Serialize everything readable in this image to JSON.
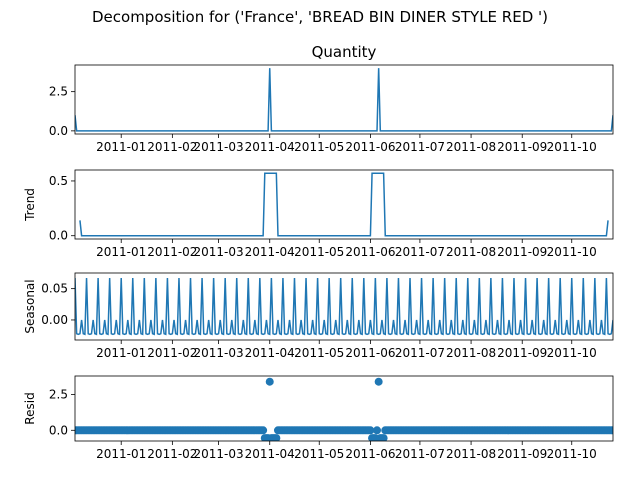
{
  "figure": {
    "suptitle": "Decomposition for ('France', 'BREAD BIN DINER STYLE RED ')"
  },
  "chart_data": [
    {
      "type": "line",
      "title": "Quantity",
      "ylabel": "",
      "x_ticks": [
        "2011-01",
        "2011-02",
        "2011-03",
        "2011-04",
        "2011-05",
        "2011-06",
        "2011-07",
        "2011-08",
        "2011-09",
        "2011-10"
      ],
      "y_ticks": [
        "0.0",
        "2.5"
      ],
      "ylim": [
        -0.2,
        4.2
      ],
      "x_range": [
        "2010-12-04",
        "2011-10-26"
      ],
      "baseline": 0,
      "spikes": [
        {
          "date": "2010-12-04",
          "value": 1
        },
        {
          "date": "2011-04-01",
          "value": 4
        },
        {
          "date": "2011-06-06",
          "value": 4
        },
        {
          "date": "2011-10-26",
          "value": 1
        }
      ],
      "color": "#1f77b4",
      "grid": false
    },
    {
      "type": "line",
      "title": "",
      "ylabel": "Trend",
      "x_ticks": [
        "2011-01",
        "2011-02",
        "2011-03",
        "2011-04",
        "2011-05",
        "2011-06",
        "2011-07",
        "2011-08",
        "2011-09",
        "2011-10"
      ],
      "y_ticks": [
        "0.0",
        "0.5"
      ],
      "ylim": [
        -0.03,
        0.6
      ],
      "x_range": [
        "2010-12-04",
        "2011-10-26"
      ],
      "points": [
        {
          "date": "2010-12-07",
          "value": 0.14
        },
        {
          "date": "2010-12-08",
          "value": 0
        },
        {
          "date": "2011-03-28",
          "value": 0
        },
        {
          "date": "2011-03-29",
          "value": 0.57
        },
        {
          "date": "2011-04-05",
          "value": 0.57
        },
        {
          "date": "2011-04-06",
          "value": 0
        },
        {
          "date": "2011-06-01",
          "value": 0
        },
        {
          "date": "2011-06-02",
          "value": 0.57
        },
        {
          "date": "2011-06-09",
          "value": 0.57
        },
        {
          "date": "2011-06-10",
          "value": 0
        },
        {
          "date": "2011-10-22",
          "value": 0
        },
        {
          "date": "2011-10-23",
          "value": 0.14
        }
      ],
      "color": "#1f77b4",
      "grid": false
    },
    {
      "type": "line",
      "title": "",
      "ylabel": "Seasonal",
      "x_ticks": [
        "2011-01",
        "2011-02",
        "2011-03",
        "2011-04",
        "2011-05",
        "2011-06",
        "2011-07",
        "2011-08",
        "2011-09",
        "2011-10"
      ],
      "y_ticks": [
        "0.00",
        "0.05"
      ],
      "ylim": [
        -0.032,
        0.075
      ],
      "x_range": [
        "2010-12-04",
        "2011-10-26"
      ],
      "weekly_pattern": [
        0.067,
        -0.022,
        -0.023,
        -0.022,
        -0.0,
        -0.022,
        -0.023
      ],
      "color": "#1f77b4",
      "grid": false
    },
    {
      "type": "scatter",
      "title": "",
      "ylabel": "Resid",
      "x_ticks": [
        "2011-01",
        "2011-02",
        "2011-03",
        "2011-04",
        "2011-05",
        "2011-06",
        "2011-07",
        "2011-08",
        "2011-09",
        "2011-10"
      ],
      "y_ticks": [
        "0.0",
        "2.5"
      ],
      "ylim": [
        -0.75,
        3.8
      ],
      "x_range": [
        "2010-12-04",
        "2011-10-26"
      ],
      "baseline_value": 0,
      "outliers": [
        {
          "date": "2011-03-29",
          "value": -0.55
        },
        {
          "date": "2011-03-30",
          "value": -0.55
        },
        {
          "date": "2011-03-31",
          "value": -0.55
        },
        {
          "date": "2011-04-01",
          "value": 3.4
        },
        {
          "date": "2011-04-02",
          "value": -0.55
        },
        {
          "date": "2011-04-03",
          "value": -0.55
        },
        {
          "date": "2011-04-04",
          "value": -0.55
        },
        {
          "date": "2011-04-05",
          "value": -0.55
        },
        {
          "date": "2011-06-02",
          "value": -0.55
        },
        {
          "date": "2011-06-03",
          "value": -0.55
        },
        {
          "date": "2011-06-04",
          "value": -0.55
        },
        {
          "date": "2011-06-06",
          "value": 3.4
        },
        {
          "date": "2011-06-07",
          "value": -0.55
        },
        {
          "date": "2011-06-08",
          "value": -0.55
        },
        {
          "date": "2011-06-09",
          "value": -0.55
        }
      ],
      "color": "#1f77b4",
      "grid": false
    }
  ]
}
